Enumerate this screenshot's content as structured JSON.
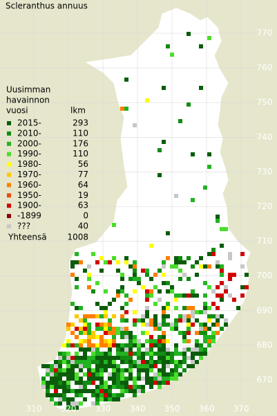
{
  "title": "Scleranthus annuus",
  "legend": {
    "heading": [
      "Uusimman",
      "havainnon",
      "vuosi"
    ],
    "count_heading": "lkm",
    "rows": [
      {
        "label": "2015-",
        "count": 293,
        "color": "#0b5d0b"
      },
      {
        "label": "2010-",
        "count": 110,
        "color": "#128c12"
      },
      {
        "label": "2000-",
        "count": 176,
        "color": "#22b322"
      },
      {
        "label": "1990-",
        "count": 110,
        "color": "#4ade2a"
      },
      {
        "label": "1980-",
        "count": 56,
        "color": "#ffff00"
      },
      {
        "label": "1970-",
        "count": 77,
        "color": "#ffc800"
      },
      {
        "label": "1960-",
        "count": 64,
        "color": "#ff7f00"
      },
      {
        "label": "1950-",
        "count": 19,
        "color": "#e84a10"
      },
      {
        "label": "1900-",
        "count": 63,
        "color": "#d00000"
      },
      {
        "label": "-1899",
        "count": 0,
        "color": "#8b0000"
      },
      {
        "label": "???",
        "count": 40,
        "color": "#c8c8c8"
      }
    ],
    "total_label": "Yhteensä",
    "total": 1008
  },
  "x_labels": [
    310,
    320,
    330,
    340,
    350,
    360,
    370
  ],
  "y_labels": [
    670,
    680,
    690,
    700,
    710,
    720,
    730,
    740,
    750,
    760,
    770
  ]
}
